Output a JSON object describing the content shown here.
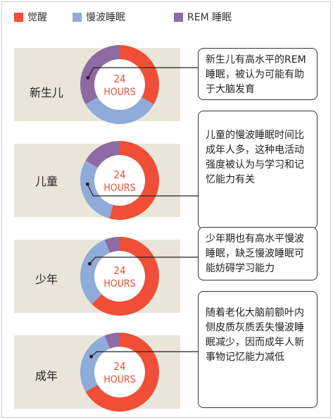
{
  "legend": [
    {
      "label": "觉醒",
      "color": "#f04e37"
    },
    {
      "label": "慢波睡眠",
      "color": "#8fabd9"
    },
    {
      "label": "REM 睡眠",
      "color": "#8e6aa3"
    }
  ],
  "center_label": {
    "line1": "24",
    "line2": "HOURS"
  },
  "chart_data": {
    "type": "pie",
    "variant": "donut",
    "total_hours": 24,
    "series_names": [
      "觉醒",
      "慢波睡眠",
      "REM 睡眠"
    ],
    "rows": [
      {
        "label": "新生儿",
        "values": [
          8,
          8,
          8
        ],
        "note": "新生儿有高水平的REM睡眠，被认为可能有助于大脑发育"
      },
      {
        "label": "儿童",
        "values": [
          13,
          7,
          4
        ],
        "note": "儿童的慢波睡眠时间比成年人多，这种电活动强度被认为与学习和记忆能力有关"
      },
      {
        "label": "少年",
        "values": [
          15,
          7.5,
          1.5
        ],
        "note": "少年期也有高水平慢波睡眠，缺乏慢波睡眠可能妨碍学习能力"
      },
      {
        "label": "成年",
        "values": [
          16,
          6.5,
          1.5
        ],
        "note": "随着老化大脑前额叶内侧皮质灰质丢失慢波睡眠减少，因而成年人新事物记忆能力减低"
      }
    ]
  }
}
